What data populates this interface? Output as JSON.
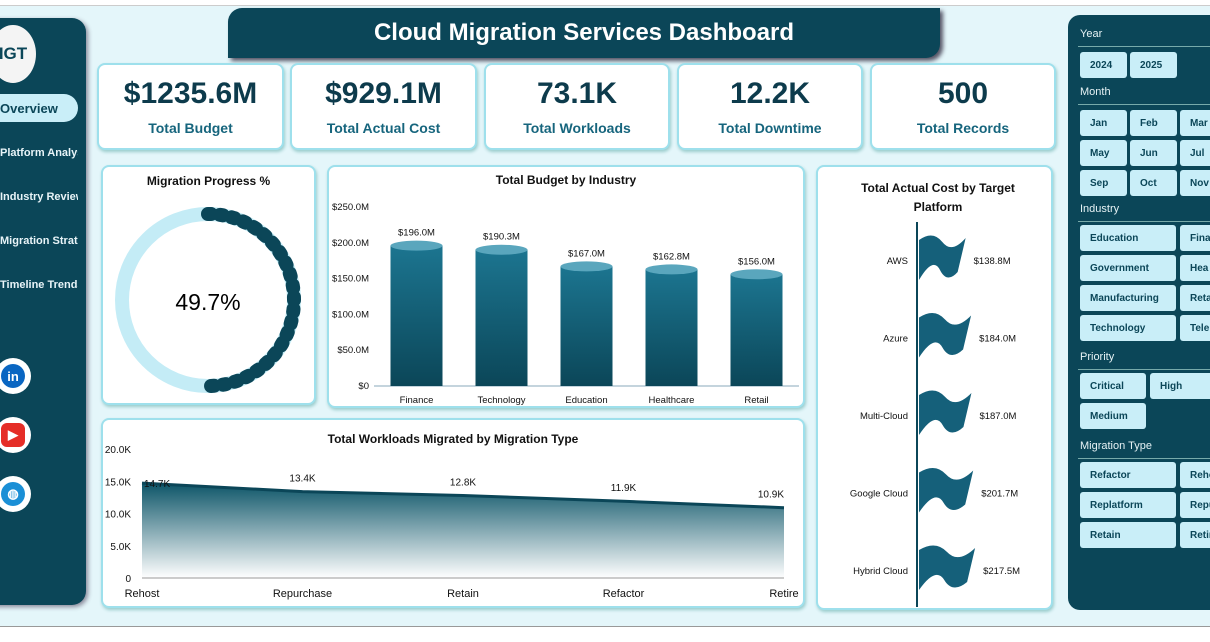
{
  "title": "Cloud Migration Services Dashboard",
  "logo_text": "IGT",
  "nav": [
    {
      "label": "Overview"
    },
    {
      "label": "Platform Analysis"
    },
    {
      "label": "Industry Review"
    },
    {
      "label": "Migration Strategy"
    },
    {
      "label": "Timeline Trends"
    }
  ],
  "social": [
    "LinkedIn",
    "YouTube",
    "Website"
  ],
  "kpis": [
    {
      "value": "$1235.6M",
      "label": "Total Budget"
    },
    {
      "value": "$929.1M",
      "label": "Total Actual Cost"
    },
    {
      "value": "73.1K",
      "label": "Total Workloads"
    },
    {
      "value": "12.2K",
      "label": "Total Downtime"
    },
    {
      "value": "500",
      "label": "Total Records"
    }
  ],
  "progress": {
    "title": "Migration Progress %",
    "value_text": "49.7%",
    "value": 49.7
  },
  "filters": {
    "year": {
      "label": "Year",
      "items": [
        "2024",
        "2025"
      ]
    },
    "month": {
      "label": "Month",
      "items": [
        "Jan",
        "Feb",
        "Mar",
        "May",
        "Jun",
        "Jul",
        "Sep",
        "Oct",
        "Nov"
      ]
    },
    "industry": {
      "label": "Industry",
      "items": [
        "Education",
        "Fina",
        "Government",
        "Hea",
        "Manufacturing",
        "Reta",
        "Technology",
        "Tele"
      ]
    },
    "priority": {
      "label": "Priority",
      "items": [
        "Critical",
        "High",
        "Medium"
      ]
    },
    "migration_type": {
      "label": "Migration Type",
      "items": [
        "Refactor",
        "Reho",
        "Replatform",
        "Repu",
        "Retain",
        "Retir"
      ]
    }
  },
  "chart_data": [
    {
      "type": "bar",
      "title": "Total Budget by Industry",
      "categories": [
        "Finance",
        "Technology",
        "Education",
        "Healthcare",
        "Retail"
      ],
      "values": [
        196.0,
        190.3,
        167.0,
        162.8,
        156.0
      ],
      "data_labels": [
        "$196.0M",
        "$190.3M",
        "$167.0M",
        "$162.8M",
        "$156.0M"
      ],
      "yticks": [
        "$0",
        "$50.0M",
        "$100.0M",
        "$150.0M",
        "$200.0M",
        "$250.0M"
      ],
      "ylim": [
        0,
        250
      ]
    },
    {
      "type": "area",
      "title": "Total Workloads Migrated by Migration Type",
      "categories": [
        "Rehost",
        "Repurchase",
        "Retain",
        "Refactor",
        "Retire"
      ],
      "values": [
        14.7,
        13.4,
        12.8,
        11.9,
        10.9
      ],
      "data_labels": [
        "14.7K",
        "13.4K",
        "12.8K",
        "11.9K",
        "10.9K"
      ],
      "yticks": [
        "0",
        "5.0K",
        "10.0K",
        "15.0K",
        "20.0K"
      ],
      "ylim": [
        0,
        20
      ]
    },
    {
      "type": "bar",
      "orientation": "horizontal",
      "title": "Total Actual Cost by Target Platform",
      "categories": [
        "AWS",
        "Azure",
        "Multi-Cloud",
        "Google Cloud",
        "Hybrid Cloud"
      ],
      "values": [
        138.8,
        184.0,
        187.0,
        201.7,
        217.5
      ],
      "data_labels": [
        "$138.8M",
        "$184.0M",
        "$187.0M",
        "$201.7M",
        "$217.5M"
      ]
    }
  ]
}
